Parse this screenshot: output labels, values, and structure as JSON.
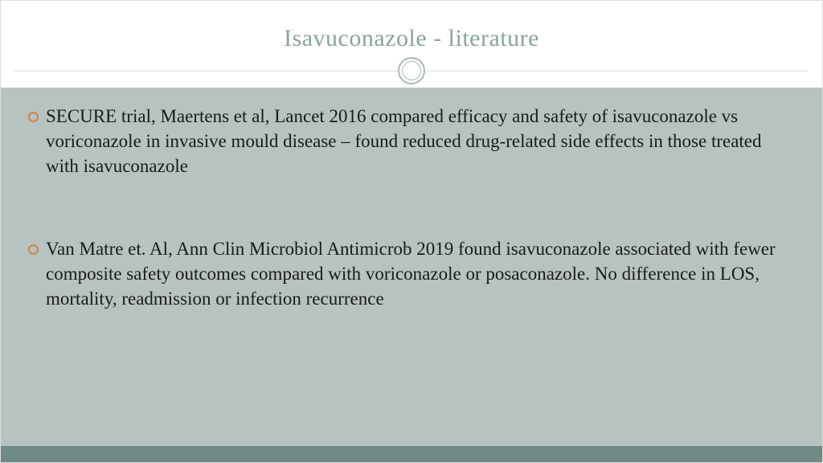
{
  "colors": {
    "title": "#89a3a0",
    "body_bg": "#b7c3c1",
    "bullet_marker": "#d38345",
    "bullet_text": "#1a1a1a",
    "footer_bar": "#6f8a87"
  },
  "title": "Isavuconazole - literature",
  "bullets": [
    "SECURE trial, Maertens et al, Lancet 2016 compared efficacy and safety of isavuconazole vs voriconazole in invasive mould disease – found reduced drug-related side effects in those treated with isavuconazole",
    "Van Matre et. Al, Ann Clin Microbiol Antimicrob 2019 found isavuconazole associated with fewer composite safety outcomes compared with voriconazole or posaconazole. No difference in LOS, mortality, readmission or infection recurrence"
  ]
}
